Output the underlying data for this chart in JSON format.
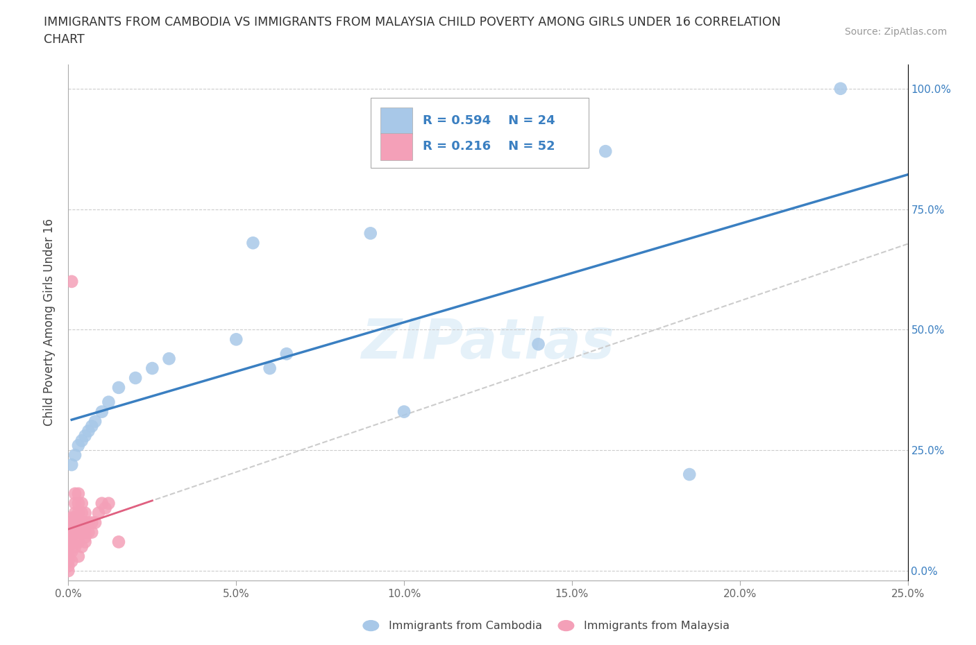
{
  "title": "IMMIGRANTS FROM CAMBODIA VS IMMIGRANTS FROM MALAYSIA CHILD POVERTY AMONG GIRLS UNDER 16 CORRELATION\nCHART",
  "source": "Source: ZipAtlas.com",
  "ylabel": "Child Poverty Among Girls Under 16",
  "xlim": [
    0.0,
    0.25
  ],
  "ylim": [
    0.0,
    1.05
  ],
  "ytick_labels": [
    "0.0%",
    "25.0%",
    "50.0%",
    "75.0%",
    "100.0%"
  ],
  "ytick_vals": [
    0.0,
    0.25,
    0.5,
    0.75,
    1.0
  ],
  "xtick_vals": [
    0.0,
    0.05,
    0.1,
    0.15,
    0.2,
    0.25
  ],
  "R_cambodia": 0.594,
  "N_cambodia": 24,
  "R_malaysia": 0.216,
  "N_malaysia": 52,
  "color_cambodia": "#a8c8e8",
  "color_malaysia": "#f4a0b8",
  "line_color_cambodia": "#3a7fc1",
  "line_color_malaysia": "#e06080",
  "watermark": "ZIPatlas",
  "cam_x": [
    0.001,
    0.002,
    0.003,
    0.004,
    0.005,
    0.006,
    0.007,
    0.008,
    0.01,
    0.012,
    0.015,
    0.02,
    0.025,
    0.03,
    0.05,
    0.055,
    0.06,
    0.065,
    0.09,
    0.1,
    0.14,
    0.16,
    0.185,
    0.23
  ],
  "cam_y": [
    0.22,
    0.24,
    0.26,
    0.27,
    0.28,
    0.29,
    0.3,
    0.31,
    0.33,
    0.35,
    0.38,
    0.4,
    0.42,
    0.44,
    0.48,
    0.68,
    0.42,
    0.45,
    0.7,
    0.33,
    0.47,
    0.87,
    0.2,
    1.0
  ],
  "mal_x": [
    0.0,
    0.0,
    0.0,
    0.0,
    0.0,
    0.0,
    0.0,
    0.0,
    0.001,
    0.001,
    0.001,
    0.001,
    0.001,
    0.001,
    0.001,
    0.001,
    0.001,
    0.002,
    0.002,
    0.002,
    0.002,
    0.002,
    0.002,
    0.002,
    0.002,
    0.003,
    0.003,
    0.003,
    0.003,
    0.003,
    0.003,
    0.003,
    0.004,
    0.004,
    0.004,
    0.004,
    0.004,
    0.005,
    0.005,
    0.005,
    0.005,
    0.005,
    0.006,
    0.006,
    0.007,
    0.007,
    0.008,
    0.009,
    0.01,
    0.011,
    0.012,
    0.015
  ],
  "mal_y": [
    0.0,
    0.01,
    0.02,
    0.03,
    0.04,
    0.05,
    0.06,
    0.07,
    0.02,
    0.04,
    0.06,
    0.07,
    0.08,
    0.09,
    0.1,
    0.11,
    0.6,
    0.05,
    0.06,
    0.08,
    0.1,
    0.11,
    0.12,
    0.14,
    0.16,
    0.03,
    0.06,
    0.08,
    0.1,
    0.12,
    0.14,
    0.16,
    0.05,
    0.08,
    0.1,
    0.12,
    0.14,
    0.06,
    0.07,
    0.08,
    0.1,
    0.12,
    0.08,
    0.1,
    0.08,
    0.1,
    0.1,
    0.12,
    0.14,
    0.13,
    0.14,
    0.06
  ]
}
